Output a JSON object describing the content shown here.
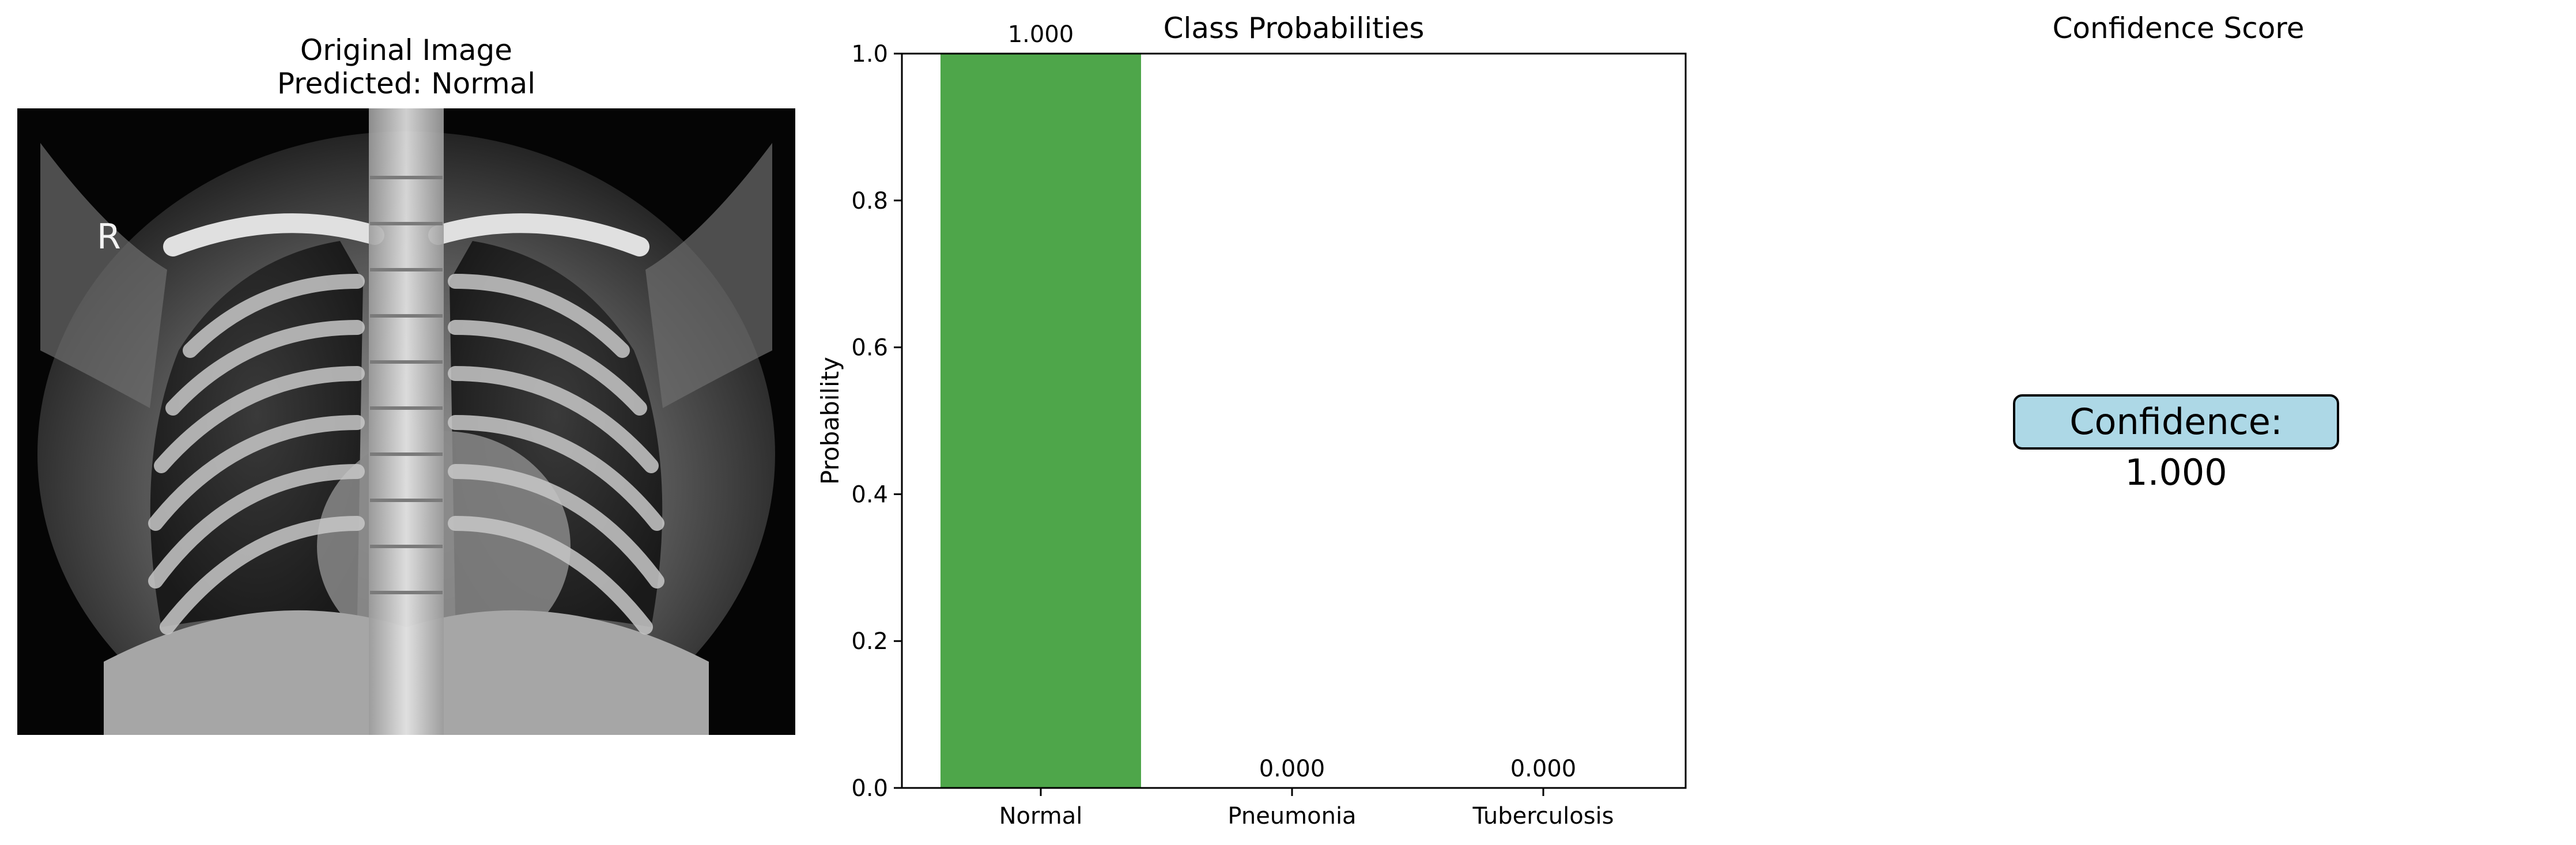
{
  "image_panel": {
    "title_line1": "Original Image",
    "title_line2": "Predicted: Normal",
    "marker": "R"
  },
  "chart_data": {
    "type": "bar",
    "title": "Class Probabilities",
    "xlabel": "",
    "ylabel": "Probability",
    "categories": [
      "Normal",
      "Pneumonia",
      "Tuberculosis"
    ],
    "values": [
      1.0,
      0.0,
      0.0
    ],
    "value_labels": [
      "1.000",
      "0.000",
      "0.000"
    ],
    "yticks": [
      "0.0",
      "0.2",
      "0.4",
      "0.6",
      "0.8",
      "1.0"
    ],
    "ylim": [
      0,
      1
    ],
    "bar_color": "#4ea64a",
    "grid": false
  },
  "confidence_panel": {
    "title": "Confidence Score",
    "text": "Confidence: 1.000",
    "box_color": "#add8e6"
  }
}
